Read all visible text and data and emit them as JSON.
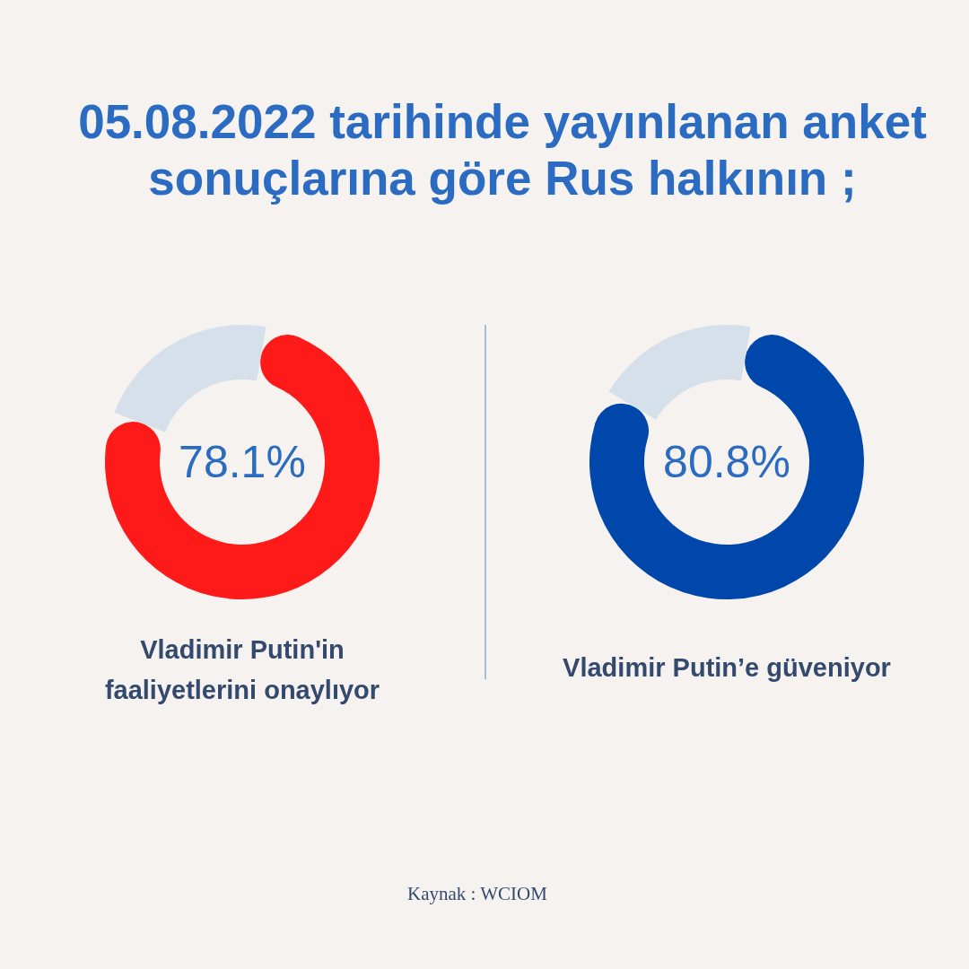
{
  "chart_data": [
    {
      "type": "donut",
      "title": "05.08.2022 tarihinde yayınlanan anket sonuçlarına göre Rus halkının ;",
      "xlabel": "Vladimir Putin'in faaliyetlerini onaylıyor",
      "categories": [
        null,
        null
      ],
      "values": [
        78.1,
        21.9
      ],
      "colors": [
        "#ff1a1a",
        "#d6e0ea"
      ],
      "value_labels": [
        "78.1%",
        null
      ],
      "annotations": [
        "Kaynak : WCIOM"
      ]
    },
    {
      "type": "donut",
      "xlabel": "Vladimir Putin’e güveniyor",
      "categories": [
        null,
        null
      ],
      "values": [
        80.8,
        19.2
      ],
      "colors": [
        "#0047ab",
        "#d6e0ea"
      ],
      "value_labels": [
        "80.8%",
        null
      ]
    }
  ]
}
